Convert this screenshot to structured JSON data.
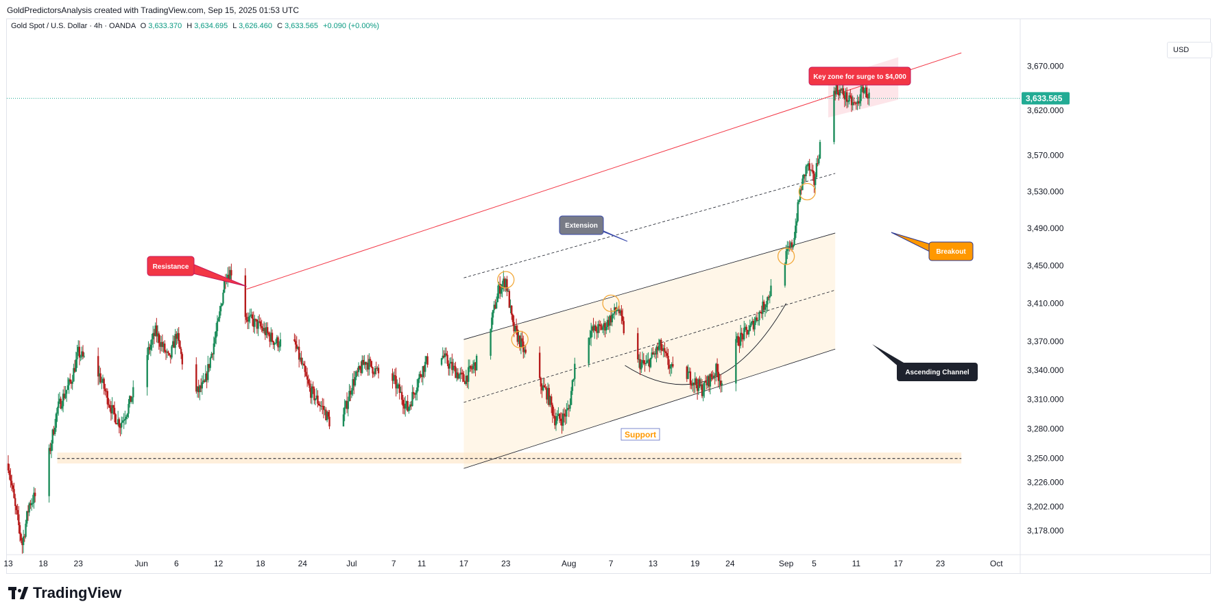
{
  "header": {
    "attribution": "GoldPredictorsAnalysis created with TradingView.com, Sep 15, 2025 01:53 UTC"
  },
  "legend": {
    "symbol": "Gold Spot / U.S. Dollar · 4h · OANDA",
    "open_label": "O",
    "open": "3,633.370",
    "high_label": "H",
    "high": "3,634.695",
    "low_label": "L",
    "low": "3,626.460",
    "close_label": "C",
    "close": "3,633.565",
    "change": "+0.090 (+0.00%)"
  },
  "currency": "USD",
  "last_price_label": "3,633.565",
  "footer": {
    "brand": "TradingView"
  },
  "annotations": {
    "resistance": "Resistance",
    "key_zone": "Key zone for surge to $4,000",
    "extension": "Extension",
    "breakout": "Breakout",
    "ascending_channel": "Ascending Channel",
    "support": "Support"
  },
  "colors": {
    "up": "#26a69a",
    "down": "#ef5350",
    "candle_up_body": "#1b8c5a",
    "candle_down_body": "#b71c1c",
    "resistance_line": "#f23645",
    "last_price": "#22ab94",
    "breakout_label": "#ff9800",
    "extension_label": "#787b86",
    "channel_label": "#1e222d",
    "channel_fill": "#fff5e6",
    "circle": "#f2a93b"
  },
  "chart_data": {
    "type": "candlestick",
    "symbol": "Gold Spot / U.S. Dollar",
    "timeframe": "4h",
    "y_axis": {
      "ticks": [
        3178,
        3202,
        3226,
        3250,
        3280,
        3310,
        3340,
        3370,
        3410,
        3450,
        3490,
        3530,
        3570,
        3620,
        3670
      ],
      "tick_labels": [
        "3,178.000",
        "3,202.000",
        "3,226.000",
        "3,250.000",
        "3,280.000",
        "3,310.000",
        "3,340.000",
        "3,370.000",
        "3,410.000",
        "3,450.000",
        "3,490.000",
        "3,530.000",
        "3,570.000",
        "3,620.000",
        "3,670.000"
      ],
      "last_price": 3633.565,
      "scale": "log"
    },
    "x_axis": {
      "tick_labels": [
        "13",
        "18",
        "23",
        "Jun",
        "6",
        "12",
        "18",
        "24",
        "Jul",
        "7",
        "11",
        "17",
        "23",
        "Aug",
        "7",
        "13",
        "19",
        "24",
        "Sep",
        "5",
        "11",
        "17",
        "23",
        "Oct"
      ],
      "tick_dates": [
        "2025-05-13",
        "2025-05-18",
        "2025-05-23",
        "2025-06-01",
        "2025-06-06",
        "2025-06-12",
        "2025-06-18",
        "2025-06-24",
        "2025-07-01",
        "2025-07-07",
        "2025-07-11",
        "2025-07-17",
        "2025-07-23",
        "2025-08-01",
        "2025-08-07",
        "2025-08-13",
        "2025-08-19",
        "2025-08-24",
        "2025-09-01",
        "2025-09-05",
        "2025-09-11",
        "2025-09-17",
        "2025-09-23",
        "2025-10-01"
      ]
    },
    "price_path": [
      [
        "2025-05-13",
        3245
      ],
      [
        "2025-05-14",
        3200
      ],
      [
        "2025-05-15",
        3165
      ],
      [
        "2025-05-16",
        3205
      ],
      [
        "2025-05-18",
        3222
      ],
      [
        "2025-05-20",
        3300
      ],
      [
        "2025-05-22",
        3330
      ],
      [
        "2025-05-23",
        3358
      ],
      [
        "2025-05-26",
        3335
      ],
      [
        "2025-05-28",
        3295
      ],
      [
        "2025-05-29",
        3285
      ],
      [
        "2025-05-30",
        3300
      ],
      [
        "2025-06-02",
        3360
      ],
      [
        "2025-06-03",
        3380
      ],
      [
        "2025-06-05",
        3350
      ],
      [
        "2025-06-06",
        3378
      ],
      [
        "2025-06-08",
        3310
      ],
      [
        "2025-06-10",
        3325
      ],
      [
        "2025-06-12",
        3390
      ],
      [
        "2025-06-13",
        3440
      ],
      [
        "2025-06-14",
        3445
      ],
      [
        "2025-06-16",
        3395
      ],
      [
        "2025-06-18",
        3385
      ],
      [
        "2025-06-20",
        3370
      ],
      [
        "2025-06-23",
        3365
      ],
      [
        "2025-06-25",
        3320
      ],
      [
        "2025-06-27",
        3300
      ],
      [
        "2025-06-29",
        3270
      ],
      [
        "2025-07-01",
        3325
      ],
      [
        "2025-07-03",
        3350
      ],
      [
        "2025-07-05",
        3335
      ],
      [
        "2025-07-07",
        3330
      ],
      [
        "2025-07-09",
        3300
      ],
      [
        "2025-07-11",
        3340
      ],
      [
        "2025-07-13",
        3365
      ],
      [
        "2025-07-15",
        3345
      ],
      [
        "2025-07-17",
        3330
      ],
      [
        "2025-07-20",
        3360
      ],
      [
        "2025-07-22",
        3425
      ],
      [
        "2025-07-23",
        3435
      ],
      [
        "2025-07-24",
        3385
      ],
      [
        "2025-07-25",
        3370
      ],
      [
        "2025-07-27",
        3335
      ],
      [
        "2025-07-29",
        3315
      ],
      [
        "2025-07-30",
        3290
      ],
      [
        "2025-07-31",
        3290
      ],
      [
        "2025-08-01",
        3300
      ],
      [
        "2025-08-02",
        3355
      ],
      [
        "2025-08-04",
        3380
      ],
      [
        "2025-08-06",
        3385
      ],
      [
        "2025-08-07",
        3395
      ],
      [
        "2025-08-08",
        3405
      ],
      [
        "2025-08-10",
        3350
      ],
      [
        "2025-08-12",
        3345
      ],
      [
        "2025-08-14",
        3365
      ],
      [
        "2025-08-16",
        3335
      ],
      [
        "2025-08-18",
        3335
      ],
      [
        "2025-08-20",
        3320
      ],
      [
        "2025-08-22",
        3340
      ],
      [
        "2025-08-23",
        3325
      ],
      [
        "2025-08-25",
        3370
      ],
      [
        "2025-08-27",
        3385
      ],
      [
        "2025-08-29",
        3410
      ],
      [
        "2025-08-31",
        3445
      ],
      [
        "2025-09-02",
        3475
      ],
      [
        "2025-09-03",
        3530
      ],
      [
        "2025-09-04",
        3560
      ],
      [
        "2025-09-05",
        3540
      ],
      [
        "2025-09-06",
        3590
      ],
      [
        "2025-09-07",
        3625
      ],
      [
        "2025-09-08",
        3645
      ],
      [
        "2025-09-09",
        3640
      ],
      [
        "2025-09-10",
        3630
      ],
      [
        "2025-09-11",
        3625
      ],
      [
        "2025-09-12",
        3645
      ],
      [
        "2025-09-13",
        3633.565
      ]
    ],
    "lines": {
      "resistance": [
        [
          "2025-06-16",
          3425
        ],
        [
          "2025-09-26",
          3685
        ]
      ],
      "channel_upper": [
        [
          "2025-07-17",
          3372
        ],
        [
          "2025-09-08",
          3485
        ]
      ],
      "channel_lower": [
        [
          "2025-07-17",
          3240
        ],
        [
          "2025-09-08",
          3362
        ]
      ],
      "channel_mid": [
        [
          "2025-07-17",
          3307
        ],
        [
          "2025-09-08",
          3424
        ]
      ],
      "extension": [
        [
          "2025-07-17",
          3437
        ],
        [
          "2025-09-08",
          3550
        ]
      ],
      "support": [
        [
          "2025-05-20",
          3250
        ],
        [
          "2025-09-26",
          3250
        ]
      ],
      "support_zone": [
        3245,
        3256
      ]
    },
    "circles": [
      [
        "2025-07-23",
        3435
      ],
      [
        "2025-07-25",
        3372
      ],
      [
        "2025-08-07",
        3410
      ],
      [
        "2025-09-01",
        3460
      ],
      [
        "2025-09-04",
        3530
      ]
    ]
  }
}
